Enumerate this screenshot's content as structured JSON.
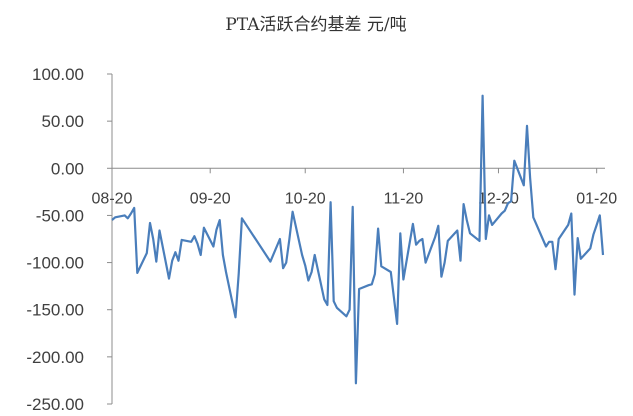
{
  "chart_data": {
    "type": "line",
    "title": "PTA活跃合约基差 元/吨",
    "xlabel": "",
    "ylabel": "",
    "ylim": [
      -250,
      100
    ],
    "yticks": [
      100,
      50,
      0,
      -50,
      -100,
      -150,
      -200,
      -250
    ],
    "ytick_labels": [
      "100.00",
      "50.00",
      "0.00",
      "-50.00",
      "-100.00",
      "-150.00",
      "-200.00",
      "-250.00"
    ],
    "xticks": [
      "08-20",
      "09-20",
      "10-20",
      "11-20",
      "12-20",
      "01-20"
    ],
    "grid": false,
    "legend": "none",
    "color": "#4a7ebb",
    "series": [
      {
        "x": [
          "2020-08-20",
          "2020-08-21",
          "2020-08-24",
          "2020-08-25",
          "2020-08-26",
          "2020-08-27",
          "2020-08-28",
          "2020-08-31",
          "2020-09-01",
          "2020-09-02",
          "2020-09-03",
          "2020-09-04",
          "2020-09-07",
          "2020-09-08",
          "2020-09-09",
          "2020-09-10",
          "2020-09-11",
          "2020-09-14",
          "2020-09-15",
          "2020-09-16",
          "2020-09-17",
          "2020-09-18",
          "2020-09-21",
          "2020-09-22",
          "2020-09-23",
          "2020-09-24",
          "2020-09-25",
          "2020-09-28",
          "2020-09-29",
          "2020-09-30",
          "2020-10-09",
          "2020-10-12",
          "2020-10-13",
          "2020-10-14",
          "2020-10-15",
          "2020-10-16",
          "2020-10-19",
          "2020-10-20",
          "2020-10-21",
          "2020-10-22",
          "2020-10-23",
          "2020-10-26",
          "2020-10-27",
          "2020-10-28",
          "2020-10-29",
          "2020-10-30",
          "2020-11-02",
          "2020-11-03",
          "2020-11-04",
          "2020-11-05",
          "2020-11-06",
          "2020-11-09",
          "2020-11-10",
          "2020-11-11",
          "2020-11-12",
          "2020-11-13",
          "2020-11-16",
          "2020-11-17",
          "2020-11-18",
          "2020-11-19",
          "2020-11-20",
          "2020-11-23",
          "2020-11-24",
          "2020-11-25",
          "2020-11-26",
          "2020-11-27",
          "2020-11-30",
          "2020-12-01",
          "2020-12-02",
          "2020-12-03",
          "2020-12-04",
          "2020-12-07",
          "2020-12-08",
          "2020-12-09",
          "2020-12-10",
          "2020-12-11",
          "2020-12-14",
          "2020-12-15",
          "2020-12-16",
          "2020-12-17",
          "2020-12-18",
          "2020-12-21",
          "2020-12-22",
          "2020-12-23",
          "2020-12-24",
          "2020-12-25",
          "2020-12-28",
          "2020-12-29",
          "2020-12-30",
          "2020-12-31",
          "2021-01-04",
          "2021-01-05",
          "2021-01-06",
          "2021-01-07",
          "2021-01-08",
          "2021-01-11",
          "2021-01-12",
          "2021-01-13",
          "2021-01-14",
          "2021-01-15",
          "2021-01-18",
          "2021-01-19",
          "2021-01-20",
          "2021-01-21",
          "2021-01-22"
        ],
        "values": [
          -55,
          -52,
          -50,
          -53,
          -48,
          -42,
          -111,
          -90,
          -58,
          -75,
          -99,
          -66,
          -117,
          -98,
          -89,
          -98,
          -76,
          -78,
          -72,
          -80,
          -92,
          -63,
          -83,
          -65,
          -55,
          -92,
          -110,
          -158,
          -112,
          -53,
          -99,
          -75,
          -106,
          -100,
          -75,
          -46,
          -92,
          -103,
          -119,
          -110,
          -92,
          -139,
          -145,
          -36,
          -141,
          -148,
          -157,
          -150,
          -41,
          -228,
          -128,
          -124,
          -123,
          -112,
          -64,
          -104,
          -110,
          -137,
          -165,
          -69,
          -118,
          -59,
          -81,
          -77,
          -75,
          -100,
          -73,
          -61,
          -115,
          -100,
          -77,
          -66,
          -98,
          -38,
          -55,
          -69,
          -77,
          77,
          -75,
          -50,
          -60,
          -48,
          -45,
          -37,
          -35,
          8,
          -18,
          45,
          -10,
          -52,
          -83,
          -78,
          -78,
          -107,
          -75,
          -60,
          -48,
          -134,
          -74,
          -96,
          -85,
          -70,
          -60,
          -50,
          -92
        ]
      }
    ]
  }
}
